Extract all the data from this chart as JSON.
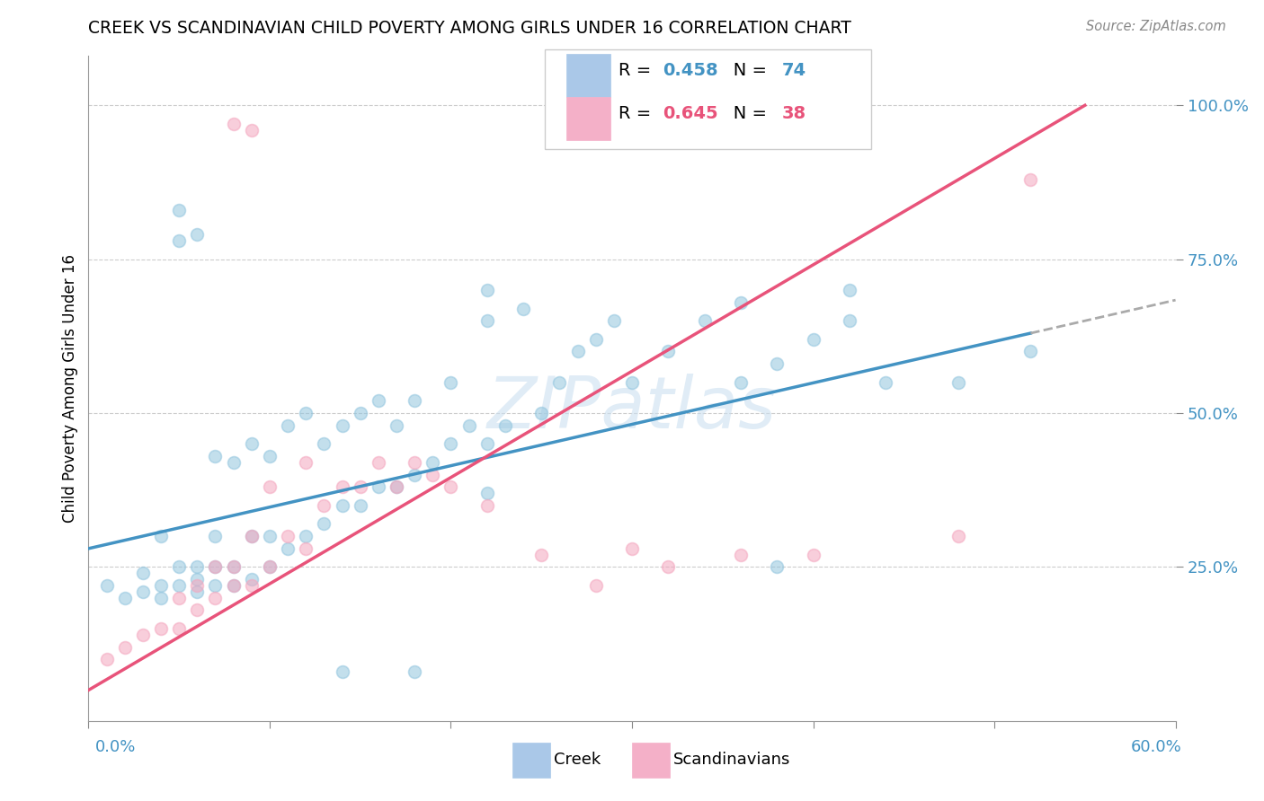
{
  "title": "CREEK VS SCANDINAVIAN CHILD POVERTY AMONG GIRLS UNDER 16 CORRELATION CHART",
  "source": "Source: ZipAtlas.com",
  "ylabel": "Child Poverty Among Girls Under 16",
  "creek_R": 0.458,
  "creek_N": 74,
  "scand_R": 0.645,
  "scand_N": 38,
  "watermark": "ZIPatlas",
  "creek_color": "#92c5de",
  "scand_color": "#f4a6be",
  "creek_line_color": "#4393c3",
  "scand_line_color": "#e8537a",
  "creek_points_x": [
    1,
    2,
    3,
    3,
    4,
    4,
    4,
    5,
    5,
    6,
    6,
    6,
    7,
    7,
    7,
    7,
    8,
    8,
    8,
    9,
    9,
    9,
    10,
    10,
    10,
    11,
    11,
    12,
    12,
    13,
    13,
    14,
    14,
    15,
    15,
    16,
    16,
    17,
    17,
    18,
    18,
    19,
    20,
    20,
    21,
    22,
    22,
    23,
    24,
    25,
    26,
    27,
    28,
    29,
    30,
    32,
    34,
    36,
    38,
    40,
    42,
    44,
    48,
    52,
    5,
    5,
    6,
    22,
    36,
    42,
    14,
    18,
    38,
    22
  ],
  "creek_points_y": [
    22,
    20,
    21,
    24,
    20,
    22,
    30,
    22,
    25,
    21,
    23,
    25,
    22,
    25,
    30,
    43,
    22,
    25,
    42,
    23,
    30,
    45,
    25,
    30,
    43,
    28,
    48,
    30,
    50,
    32,
    45,
    35,
    48,
    35,
    50,
    38,
    52,
    38,
    48,
    40,
    52,
    42,
    45,
    55,
    48,
    45,
    65,
    48,
    67,
    50,
    55,
    60,
    62,
    65,
    55,
    60,
    65,
    55,
    58,
    62,
    65,
    55,
    55,
    60,
    78,
    83,
    79,
    70,
    68,
    70,
    8,
    8,
    25,
    37
  ],
  "scand_points_x": [
    1,
    2,
    3,
    4,
    5,
    5,
    6,
    6,
    7,
    7,
    8,
    8,
    9,
    9,
    10,
    10,
    11,
    12,
    12,
    13,
    14,
    15,
    16,
    17,
    18,
    19,
    20,
    22,
    25,
    28,
    30,
    32,
    36,
    40,
    48,
    8,
    9,
    52
  ],
  "scand_points_y": [
    10,
    12,
    14,
    15,
    15,
    20,
    18,
    22,
    20,
    25,
    22,
    25,
    22,
    30,
    25,
    38,
    30,
    28,
    42,
    35,
    38,
    38,
    42,
    38,
    42,
    40,
    38,
    35,
    27,
    22,
    28,
    25,
    27,
    27,
    30,
    97,
    96,
    88
  ],
  "xlim": [
    0,
    60
  ],
  "ylim": [
    0,
    108
  ],
  "yticks": [
    25,
    50,
    75,
    100
  ],
  "ytick_labels": [
    "25.0%",
    "50.0%",
    "75.0%",
    "100.0%"
  ],
  "xticks": [
    0,
    10,
    20,
    30,
    40,
    50,
    60
  ]
}
